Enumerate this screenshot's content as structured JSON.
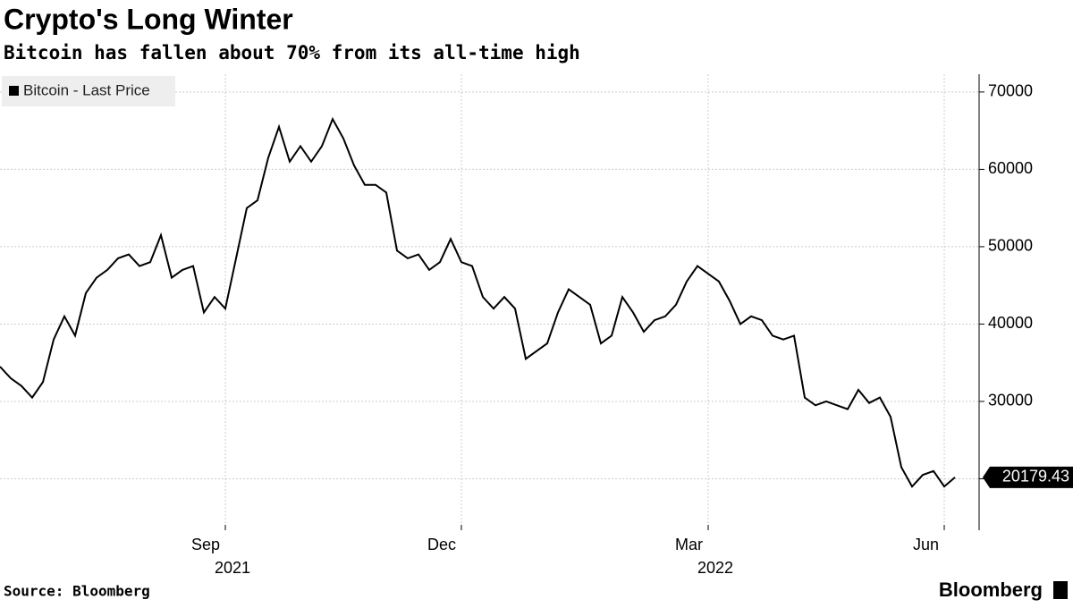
{
  "chart_data": {
    "type": "line",
    "title": "Crypto's Long Winter",
    "subtitle": "Bitcoin has fallen about 70% from its all-time high",
    "source": "Source: Bloomberg",
    "brand": "Bloomberg",
    "categories": [
      null,
      null,
      null,
      null,
      null,
      null,
      null,
      null,
      null,
      null,
      null,
      null,
      null,
      null,
      null,
      null,
      null,
      null,
      null,
      null,
      null,
      "Sep",
      null,
      null,
      null,
      null,
      null,
      null,
      null,
      null,
      null,
      null,
      null,
      null,
      null,
      null,
      null,
      null,
      null,
      null,
      null,
      null,
      null,
      "Dec",
      null,
      null,
      null,
      null,
      null,
      null,
      null,
      null,
      null,
      null,
      null,
      null,
      null,
      null,
      null,
      null,
      null,
      null,
      null,
      null,
      null,
      null,
      "Mar",
      null,
      null,
      null,
      null,
      null,
      null,
      null,
      null,
      null,
      null,
      null,
      null,
      null,
      null,
      null,
      null,
      null,
      null,
      null,
      null,
      null,
      "Jun",
      null
    ],
    "year_categories": [
      null,
      null,
      null,
      null,
      null,
      null,
      null,
      null,
      null,
      null,
      null,
      null,
      null,
      null,
      null,
      null,
      null,
      null,
      null,
      null,
      null,
      "2021",
      null,
      null,
      null,
      null,
      null,
      null,
      null,
      null,
      null,
      null,
      null,
      null,
      null,
      null,
      null,
      null,
      null,
      null,
      null,
      null,
      null,
      null,
      null,
      null,
      null,
      null,
      null,
      null,
      null,
      null,
      null,
      null,
      null,
      null,
      null,
      null,
      null,
      null,
      null,
      null,
      null,
      null,
      null,
      null,
      "2022",
      null,
      null,
      null,
      null,
      null,
      null,
      null,
      null,
      null,
      null,
      null,
      null,
      null,
      null,
      null,
      null,
      null,
      null,
      null,
      null,
      null,
      null,
      null
    ],
    "series": [
      {
        "name": "Bitcoin - Last Price",
        "color": "#000000",
        "values": [
          34500,
          33000,
          32000,
          30500,
          32500,
          38000,
          41000,
          38500,
          44000,
          46000,
          47000,
          48500,
          49000,
          47500,
          48000,
          51500,
          46000,
          47000,
          47500,
          41500,
          43500,
          42000,
          48500,
          55000,
          56000,
          61500,
          65500,
          61000,
          63000,
          61000,
          63000,
          66500,
          64000,
          60500,
          58000,
          58000,
          57000,
          49500,
          48500,
          49000,
          47000,
          48000,
          51000,
          48000,
          47500,
          43500,
          42000,
          43500,
          42000,
          35500,
          36500,
          37500,
          41500,
          44500,
          43500,
          42500,
          37500,
          38500,
          43500,
          41500,
          39000,
          40500,
          41000,
          42500,
          45500,
          47500,
          46500,
          45500,
          43000,
          40000,
          41000,
          40500,
          38500,
          38000,
          38500,
          30500,
          29500,
          30000,
          29500,
          29000,
          31500,
          29800,
          30500,
          28000,
          21500,
          19000,
          20500,
          21000,
          19000,
          20179.43
        ]
      }
    ],
    "ylim": [
      13350,
      72300
    ],
    "yticks": [
      20000,
      30000,
      40000,
      50000,
      60000,
      70000
    ],
    "grid": true,
    "legend": "top-left"
  }
}
